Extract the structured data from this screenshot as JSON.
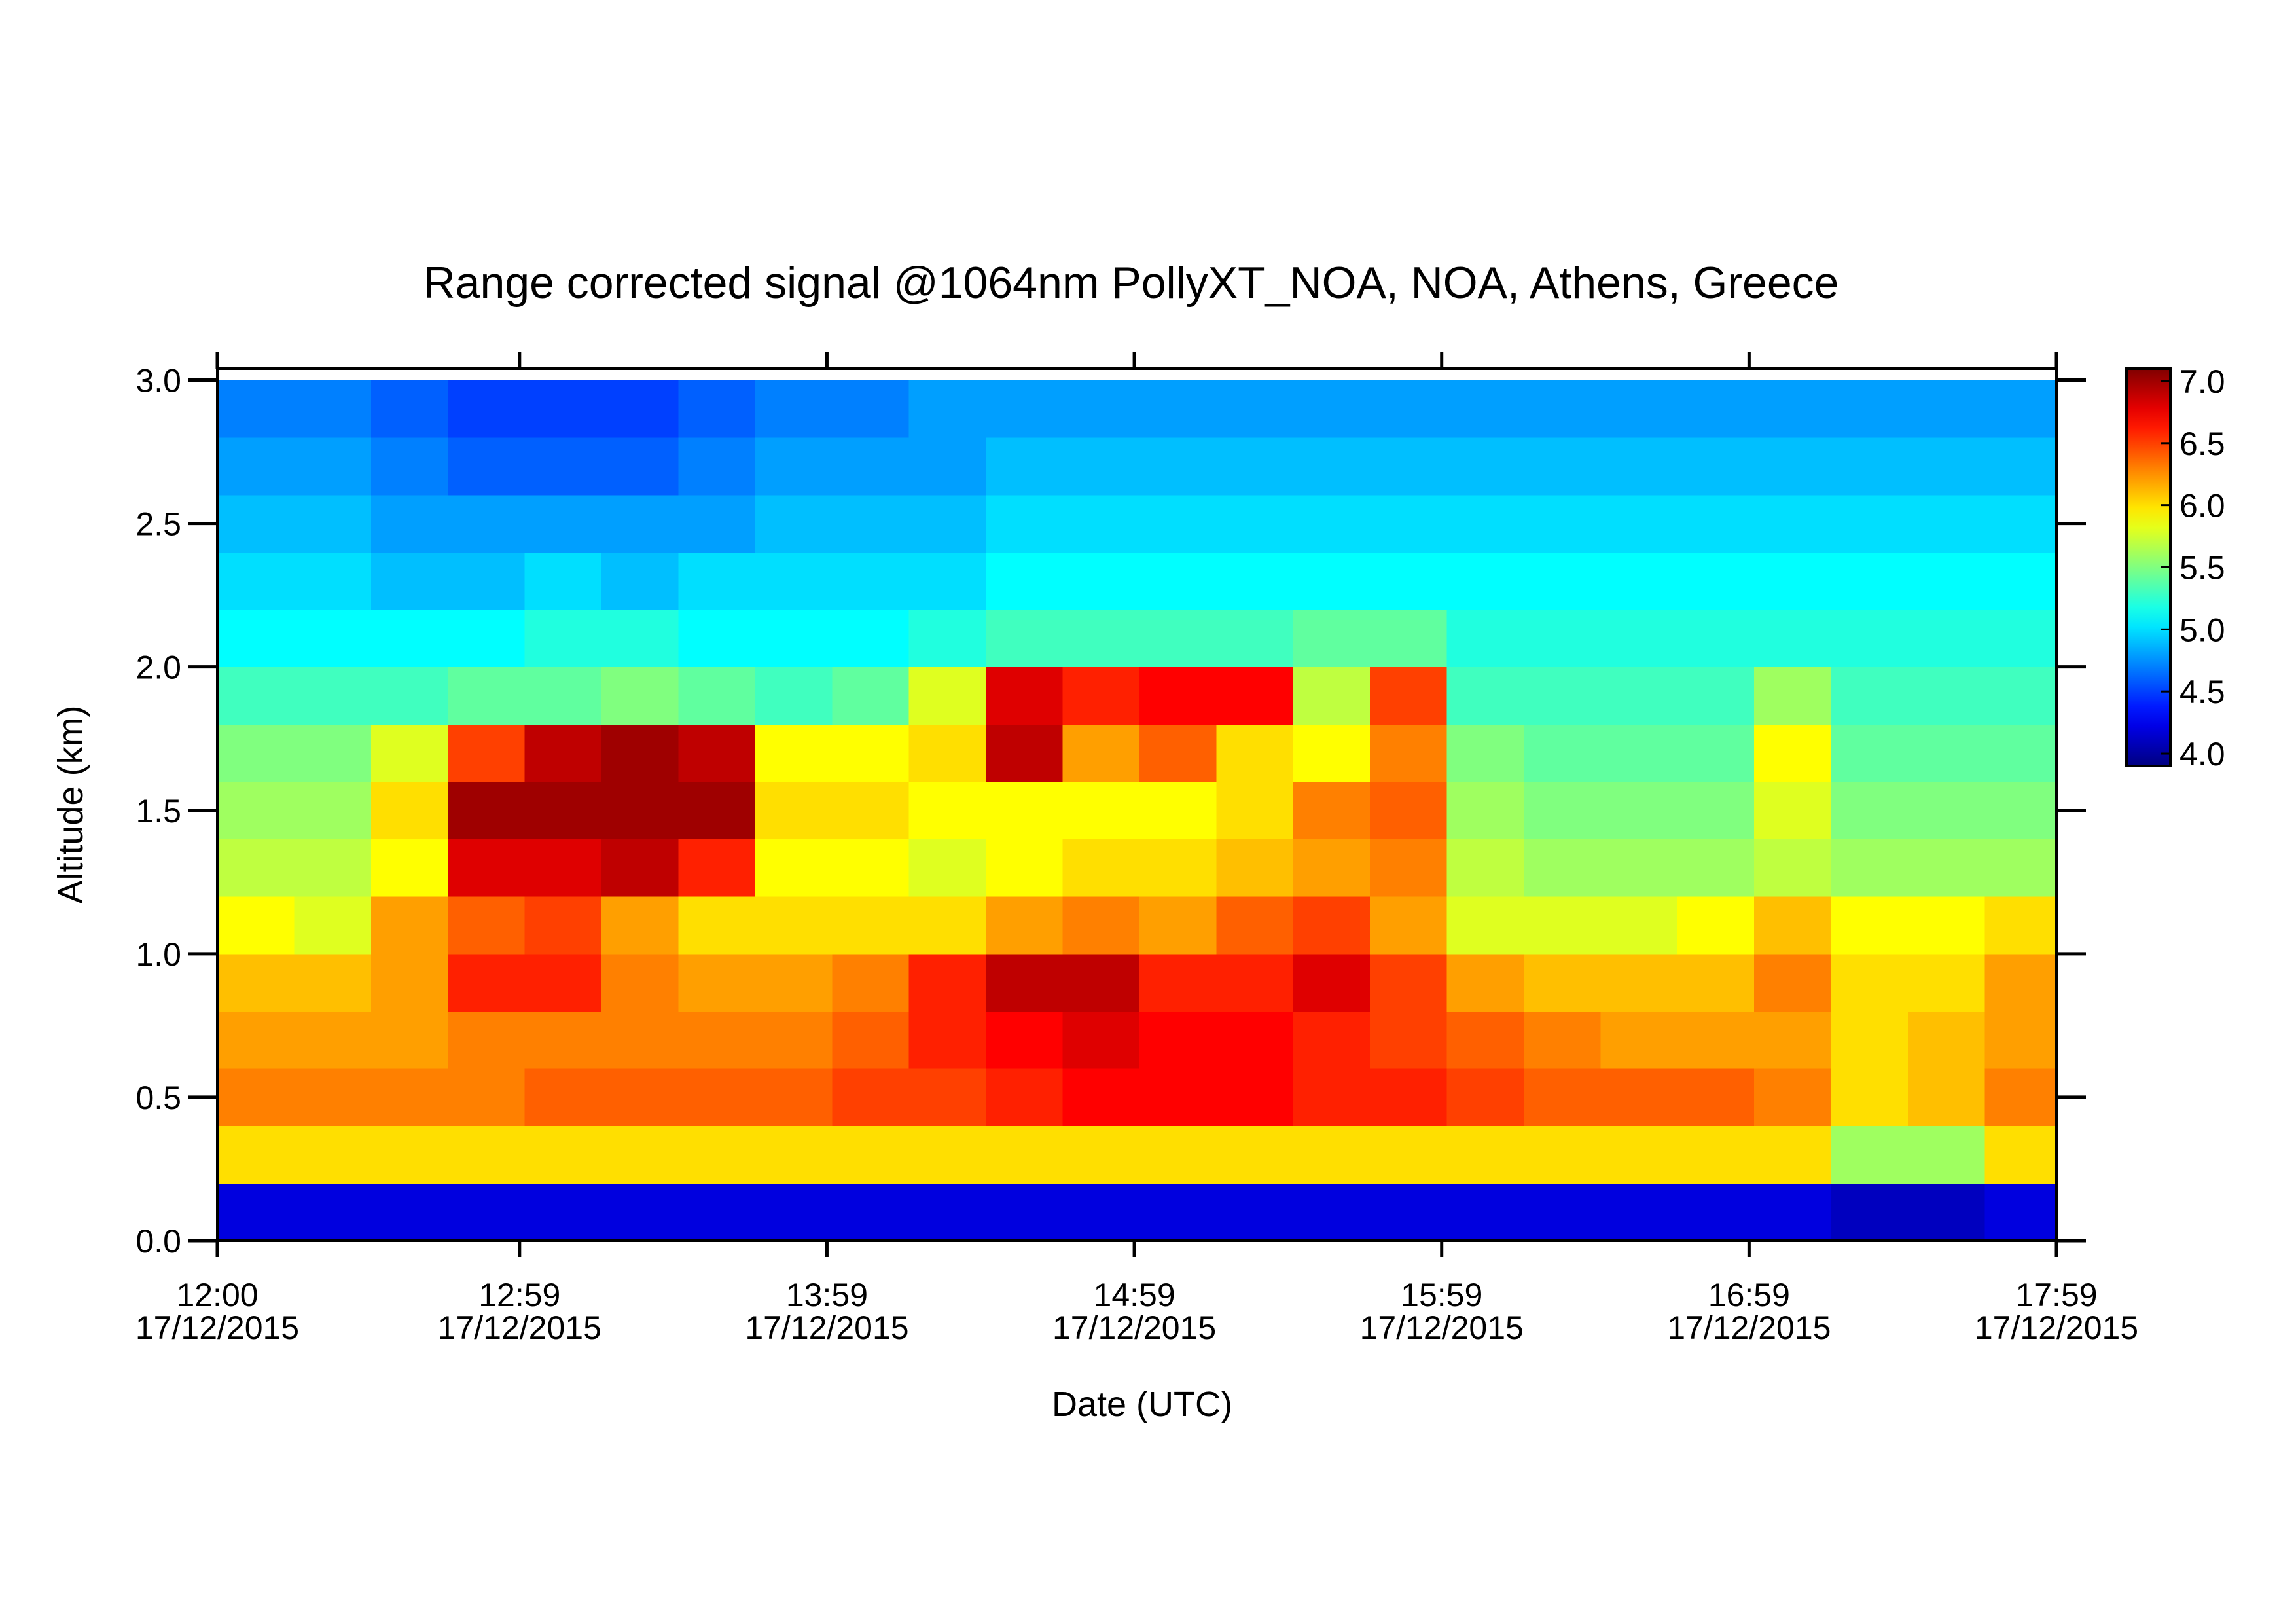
{
  "chart_data": {
    "type": "heatmap",
    "title": "Range corrected signal @1064nm  PollyXT_NOA, NOA, Athens, Greece",
    "xlabel": "Date (UTC)",
    "ylabel": "Altitude (km)",
    "colormap": "jet",
    "xlim": [
      "2015-12-17T12:00",
      "2015-12-17T17:59"
    ],
    "xticks": [
      {
        "value": "2015-12-17T12:00",
        "label": [
          "12:00",
          "17/12/2015"
        ]
      },
      {
        "value": "2015-12-17T12:59",
        "label": [
          "12:59",
          "17/12/2015"
        ]
      },
      {
        "value": "2015-12-17T13:59",
        "label": [
          "13:59",
          "17/12/2015"
        ]
      },
      {
        "value": "2015-12-17T14:59",
        "label": [
          "14:59",
          "17/12/2015"
        ]
      },
      {
        "value": "2015-12-17T15:59",
        "label": [
          "15:59",
          "17/12/2015"
        ]
      },
      {
        "value": "2015-12-17T16:59",
        "label": [
          "16:59",
          "17/12/2015"
        ]
      },
      {
        "value": "2015-12-17T17:59",
        "label": [
          "17:59",
          "17/12/2015"
        ]
      }
    ],
    "ylim": [
      0,
      3.04
    ],
    "yticks": [
      {
        "value": 0,
        "label": "0.0"
      },
      0.5,
      {
        "value": 1,
        "label": "1.0"
      },
      1.5,
      {
        "value": 2,
        "label": "2.0"
      },
      2.5,
      {
        "value": 3,
        "label": "3.0"
      }
    ],
    "zlim": [
      3.9,
      7.1
    ],
    "zticks": [
      {
        "value": 4,
        "label": "4.0"
      },
      4.5,
      {
        "value": 5,
        "label": "5.0"
      },
      5.5,
      {
        "value": 6,
        "label": "6.0"
      },
      6.5,
      {
        "value": 7,
        "label": "7.0"
      }
    ],
    "x_edges": [
      "2015-12-17T12:00",
      "2015-12-17T12:15",
      "2015-12-17T12:30",
      "2015-12-17T12:45",
      "2015-12-17T13:00",
      "2015-12-17T13:15",
      "2015-12-17T13:30",
      "2015-12-17T13:45",
      "2015-12-17T14:00",
      "2015-12-17T14:15",
      "2015-12-17T14:30",
      "2015-12-17T14:45",
      "2015-12-17T15:00",
      "2015-12-17T15:15",
      "2015-12-17T15:30",
      "2015-12-17T15:45",
      "2015-12-17T16:00",
      "2015-12-17T16:15",
      "2015-12-17T16:30",
      "2015-12-17T16:45",
      "2015-12-17T17:00",
      "2015-12-17T17:15",
      "2015-12-17T17:30",
      "2015-12-17T17:45",
      "2015-12-17T17:59"
    ],
    "y_edges": [
      0,
      0.2,
      0.4,
      0.6,
      0.8,
      1.0,
      1.2,
      1.4,
      1.6,
      1.8,
      2.0,
      2.2,
      2.4,
      2.6,
      2.8,
      3.0
    ],
    "z": [
      [
        4.2,
        4.2,
        4.2,
        4.2,
        4.2,
        4.2,
        4.2,
        4.2,
        4.2,
        4.2,
        4.2,
        4.2,
        4.2,
        4.2,
        4.2,
        4.2,
        4.2,
        4.2,
        4.2,
        4.2,
        4.2,
        4.1,
        4.1,
        4.2
      ],
      [
        6.0,
        6.0,
        6.0,
        6.0,
        6.0,
        6.0,
        6.0,
        6.0,
        6.0,
        6.0,
        6.0,
        6.0,
        6.0,
        6.0,
        6.0,
        6.0,
        6.0,
        6.0,
        6.0,
        6.0,
        6.0,
        5.6,
        5.6,
        6.0
      ],
      [
        6.3,
        6.3,
        6.3,
        6.3,
        6.4,
        6.4,
        6.4,
        6.4,
        6.5,
        6.5,
        6.6,
        6.7,
        6.7,
        6.7,
        6.6,
        6.6,
        6.5,
        6.4,
        6.4,
        6.4,
        6.3,
        6.0,
        6.1,
        6.3
      ],
      [
        6.2,
        6.2,
        6.2,
        6.3,
        6.3,
        6.3,
        6.3,
        6.3,
        6.4,
        6.6,
        6.7,
        6.8,
        6.7,
        6.7,
        6.6,
        6.5,
        6.4,
        6.3,
        6.2,
        6.2,
        6.2,
        6.0,
        6.1,
        6.2
      ],
      [
        6.1,
        6.1,
        6.2,
        6.6,
        6.6,
        6.3,
        6.2,
        6.2,
        6.3,
        6.6,
        6.9,
        6.9,
        6.6,
        6.6,
        6.8,
        6.5,
        6.2,
        6.1,
        6.1,
        6.1,
        6.3,
        6.0,
        6.0,
        6.2
      ],
      [
        5.9,
        5.8,
        6.2,
        6.4,
        6.5,
        6.2,
        6.0,
        6.0,
        6.0,
        6.0,
        6.2,
        6.3,
        6.2,
        6.4,
        6.5,
        6.2,
        5.8,
        5.8,
        5.8,
        5.9,
        6.1,
        5.9,
        5.9,
        6.0
      ],
      [
        5.7,
        5.7,
        5.9,
        6.8,
        6.8,
        6.9,
        6.6,
        5.9,
        5.9,
        5.8,
        5.9,
        6.0,
        6.0,
        6.1,
        6.2,
        6.3,
        5.7,
        5.6,
        5.6,
        5.6,
        5.7,
        5.6,
        5.6,
        5.6
      ],
      [
        5.6,
        5.6,
        6.0,
        7.0,
        7.0,
        7.0,
        7.0,
        6.0,
        6.0,
        5.9,
        5.9,
        5.9,
        5.9,
        6.0,
        6.3,
        6.4,
        5.6,
        5.5,
        5.5,
        5.5,
        5.8,
        5.5,
        5.5,
        5.5
      ],
      [
        5.5,
        5.5,
        5.8,
        6.5,
        6.9,
        7.0,
        6.9,
        5.9,
        5.9,
        6.0,
        6.9,
        6.2,
        6.4,
        6.0,
        5.9,
        6.3,
        5.5,
        5.4,
        5.4,
        5.4,
        5.9,
        5.4,
        5.4,
        5.4
      ],
      [
        5.3,
        5.3,
        5.3,
        5.4,
        5.4,
        5.5,
        5.4,
        5.3,
        5.4,
        5.8,
        6.8,
        6.6,
        6.7,
        6.7,
        5.7,
        6.5,
        5.3,
        5.3,
        5.3,
        5.3,
        5.6,
        5.3,
        5.3,
        5.3
      ],
      [
        5.1,
        5.1,
        5.1,
        5.1,
        5.2,
        5.2,
        5.1,
        5.1,
        5.1,
        5.2,
        5.3,
        5.3,
        5.3,
        5.3,
        5.4,
        5.4,
        5.2,
        5.2,
        5.2,
        5.2,
        5.2,
        5.2,
        5.2,
        5.2
      ],
      [
        5.0,
        5.0,
        4.9,
        4.9,
        5.0,
        4.9,
        5.0,
        5.0,
        5.0,
        5.0,
        5.1,
        5.1,
        5.1,
        5.1,
        5.1,
        5.1,
        5.1,
        5.1,
        5.1,
        5.1,
        5.1,
        5.1,
        5.1,
        5.1
      ],
      [
        4.9,
        4.9,
        4.8,
        4.8,
        4.8,
        4.8,
        4.8,
        4.9,
        4.9,
        4.9,
        5.0,
        5.0,
        5.0,
        5.0,
        5.0,
        5.0,
        5.0,
        5.0,
        5.0,
        5.0,
        5.0,
        5.0,
        5.0,
        5.0
      ],
      [
        4.8,
        4.8,
        4.7,
        4.6,
        4.6,
        4.6,
        4.7,
        4.8,
        4.8,
        4.8,
        4.9,
        4.9,
        4.9,
        4.9,
        4.9,
        4.9,
        4.9,
        4.9,
        4.9,
        4.9,
        4.9,
        4.9,
        4.9,
        4.9
      ],
      [
        4.7,
        4.7,
        4.6,
        4.5,
        4.5,
        4.5,
        4.6,
        4.7,
        4.7,
        4.8,
        4.8,
        4.8,
        4.8,
        4.8,
        4.8,
        4.8,
        4.8,
        4.8,
        4.8,
        4.8,
        4.8,
        4.8,
        4.8,
        4.8
      ]
    ]
  }
}
